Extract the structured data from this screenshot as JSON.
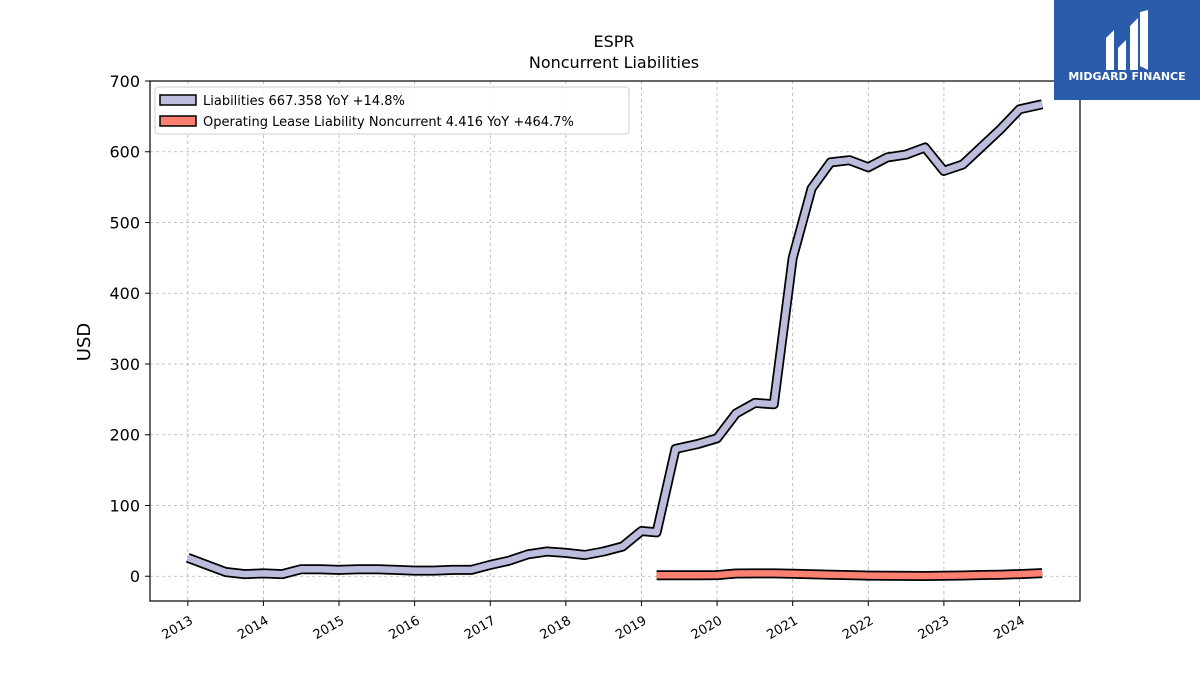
{
  "chart_data": {
    "type": "line",
    "title": "ESPR",
    "subtitle": "Noncurrent  Liabilities",
    "xlabel": "",
    "ylabel": "USD",
    "ylim": [
      -35,
      700
    ],
    "xlim": [
      2012.5,
      2024.8
    ],
    "yticks": [
      0,
      100,
      200,
      300,
      400,
      500,
      600,
      700
    ],
    "xticks": [
      "2013",
      "2014",
      "2015",
      "2016",
      "2017",
      "2018",
      "2019",
      "2020",
      "2021",
      "2022",
      "2023",
      "2024"
    ],
    "grid": true,
    "legend_position": "top-left",
    "series": [
      {
        "name": "Liabilities",
        "legend_label": "Liabilities  667.358 YoY +14.8%",
        "color": "#bcbddc",
        "x": [
          2013.0,
          2013.25,
          2013.5,
          2013.75,
          2014.0,
          2014.25,
          2014.5,
          2014.75,
          2015.0,
          2015.25,
          2015.5,
          2015.75,
          2016.0,
          2016.25,
          2016.5,
          2016.75,
          2017.0,
          2017.25,
          2017.5,
          2017.75,
          2018.0,
          2018.25,
          2018.5,
          2018.75,
          2019.0,
          2019.2,
          2019.45,
          2019.75,
          2020.0,
          2020.25,
          2020.5,
          2020.75,
          2021.0,
          2021.25,
          2021.5,
          2021.75,
          2022.0,
          2022.25,
          2022.5,
          2022.75,
          2023.0,
          2023.25,
          2023.5,
          2023.75,
          2024.0,
          2024.3
        ],
        "values": [
          26,
          16,
          6,
          3,
          4,
          3,
          10,
          10,
          9,
          10,
          10,
          9,
          8,
          8,
          9,
          9,
          16,
          22,
          31,
          35,
          33,
          30,
          35,
          42,
          64,
          62,
          180,
          187,
          195,
          230,
          245,
          243,
          450,
          548,
          585,
          588,
          578,
          592,
          596,
          606,
          573,
          582,
          607,
          632,
          660,
          667
        ]
      },
      {
        "name": "Operating Lease Liability Noncurrent",
        "legend_label": "Operating Lease Liability Noncurrent  4.416 YoY +464.7%",
        "color": "#fb8072",
        "x": [
          2019.2,
          2019.5,
          2019.75,
          2020.0,
          2020.25,
          2020.5,
          2020.75,
          2021.0,
          2021.25,
          2021.5,
          2021.75,
          2022.0,
          2022.25,
          2022.5,
          2022.75,
          2023.0,
          2023.25,
          2023.5,
          2023.75,
          2024.0,
          2024.3
        ],
        "values": [
          1.5,
          1.5,
          1.5,
          1.6,
          3.8,
          4.0,
          4.0,
          3.5,
          2.8,
          2.2,
          1.6,
          0.9,
          0.6,
          0.5,
          0.4,
          0.8,
          1.0,
          1.8,
          2.2,
          3.0,
          4.4
        ]
      }
    ]
  },
  "logo": {
    "name": "MIDGARD FINANCE",
    "bg_color": "#2a5caa"
  }
}
